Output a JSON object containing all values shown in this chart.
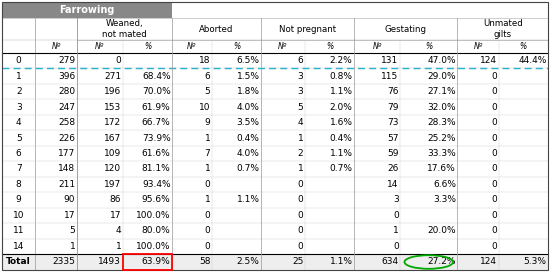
{
  "title": "Farrowing",
  "header_bg": "#888888",
  "header_text_color": "#ffffff",
  "bg_color": "#ffffff",
  "dashed_line_color": "#00aacc",
  "font_size": 6.5,
  "rows": [
    [
      "0",
      "279",
      "0",
      "",
      "18",
      "6.5%",
      "6",
      "2.2%",
      "131",
      "47.0%",
      "124",
      "44.4%"
    ],
    [
      "1",
      "396",
      "271",
      "68.4%",
      "6",
      "1.5%",
      "3",
      "0.8%",
      "115",
      "29.0%",
      "0",
      ""
    ],
    [
      "2",
      "280",
      "196",
      "70.0%",
      "5",
      "1.8%",
      "3",
      "1.1%",
      "76",
      "27.1%",
      "0",
      ""
    ],
    [
      "3",
      "247",
      "153",
      "61.9%",
      "10",
      "4.0%",
      "5",
      "2.0%",
      "79",
      "32.0%",
      "0",
      ""
    ],
    [
      "4",
      "258",
      "172",
      "66.7%",
      "9",
      "3.5%",
      "4",
      "1.6%",
      "73",
      "28.3%",
      "0",
      ""
    ],
    [
      "5",
      "226",
      "167",
      "73.9%",
      "1",
      "0.4%",
      "1",
      "0.4%",
      "57",
      "25.2%",
      "0",
      ""
    ],
    [
      "6",
      "177",
      "109",
      "61.6%",
      "7",
      "4.0%",
      "2",
      "1.1%",
      "59",
      "33.3%",
      "0",
      ""
    ],
    [
      "7",
      "148",
      "120",
      "81.1%",
      "1",
      "0.7%",
      "1",
      "0.7%",
      "26",
      "17.6%",
      "0",
      ""
    ],
    [
      "8",
      "211",
      "197",
      "93.4%",
      "0",
      "",
      "0",
      "",
      "14",
      "6.6%",
      "0",
      ""
    ],
    [
      "9",
      "90",
      "86",
      "95.6%",
      "1",
      "1.1%",
      "0",
      "",
      "3",
      "3.3%",
      "0",
      ""
    ],
    [
      "10",
      "17",
      "17",
      "100.0%",
      "0",
      "",
      "0",
      "",
      "0",
      "",
      "0",
      ""
    ],
    [
      "11",
      "5",
      "4",
      "80.0%",
      "0",
      "",
      "0",
      "",
      "1",
      "20.0%",
      "0",
      ""
    ],
    [
      "14",
      "1",
      "1",
      "100.0%",
      "0",
      "",
      "0",
      "",
      "0",
      "",
      "0",
      ""
    ]
  ],
  "total_row": [
    "Total",
    "2335",
    "1493",
    "63.9%",
    "58",
    "2.5%",
    "25",
    "1.1%",
    "634",
    "27.2%",
    "124",
    "5.3%"
  ],
  "col_groups": [
    {
      "label": "",
      "c1": 0,
      "c2": 0
    },
    {
      "label": "",
      "c1": 1,
      "c2": 1
    },
    {
      "label": "Weaned,\nnot mated",
      "c1": 2,
      "c2": 3
    },
    {
      "label": "Aborted",
      "c1": 4,
      "c2": 5
    },
    {
      "label": "Not pregnant",
      "c1": 6,
      "c2": 7
    },
    {
      "label": "Gestating",
      "c1": 8,
      "c2": 9
    },
    {
      "label": "Unmated\ngilts",
      "c1": 10,
      "c2": 11
    }
  ],
  "subheaders": [
    "",
    "Nº",
    "Nº",
    "%",
    "Nº",
    "%",
    "Nº",
    "%",
    "Nº",
    "%",
    "Nº",
    "%"
  ],
  "col_rel": [
    0.042,
    0.052,
    0.058,
    0.062,
    0.05,
    0.062,
    0.055,
    0.062,
    0.058,
    0.072,
    0.052,
    0.062
  ]
}
